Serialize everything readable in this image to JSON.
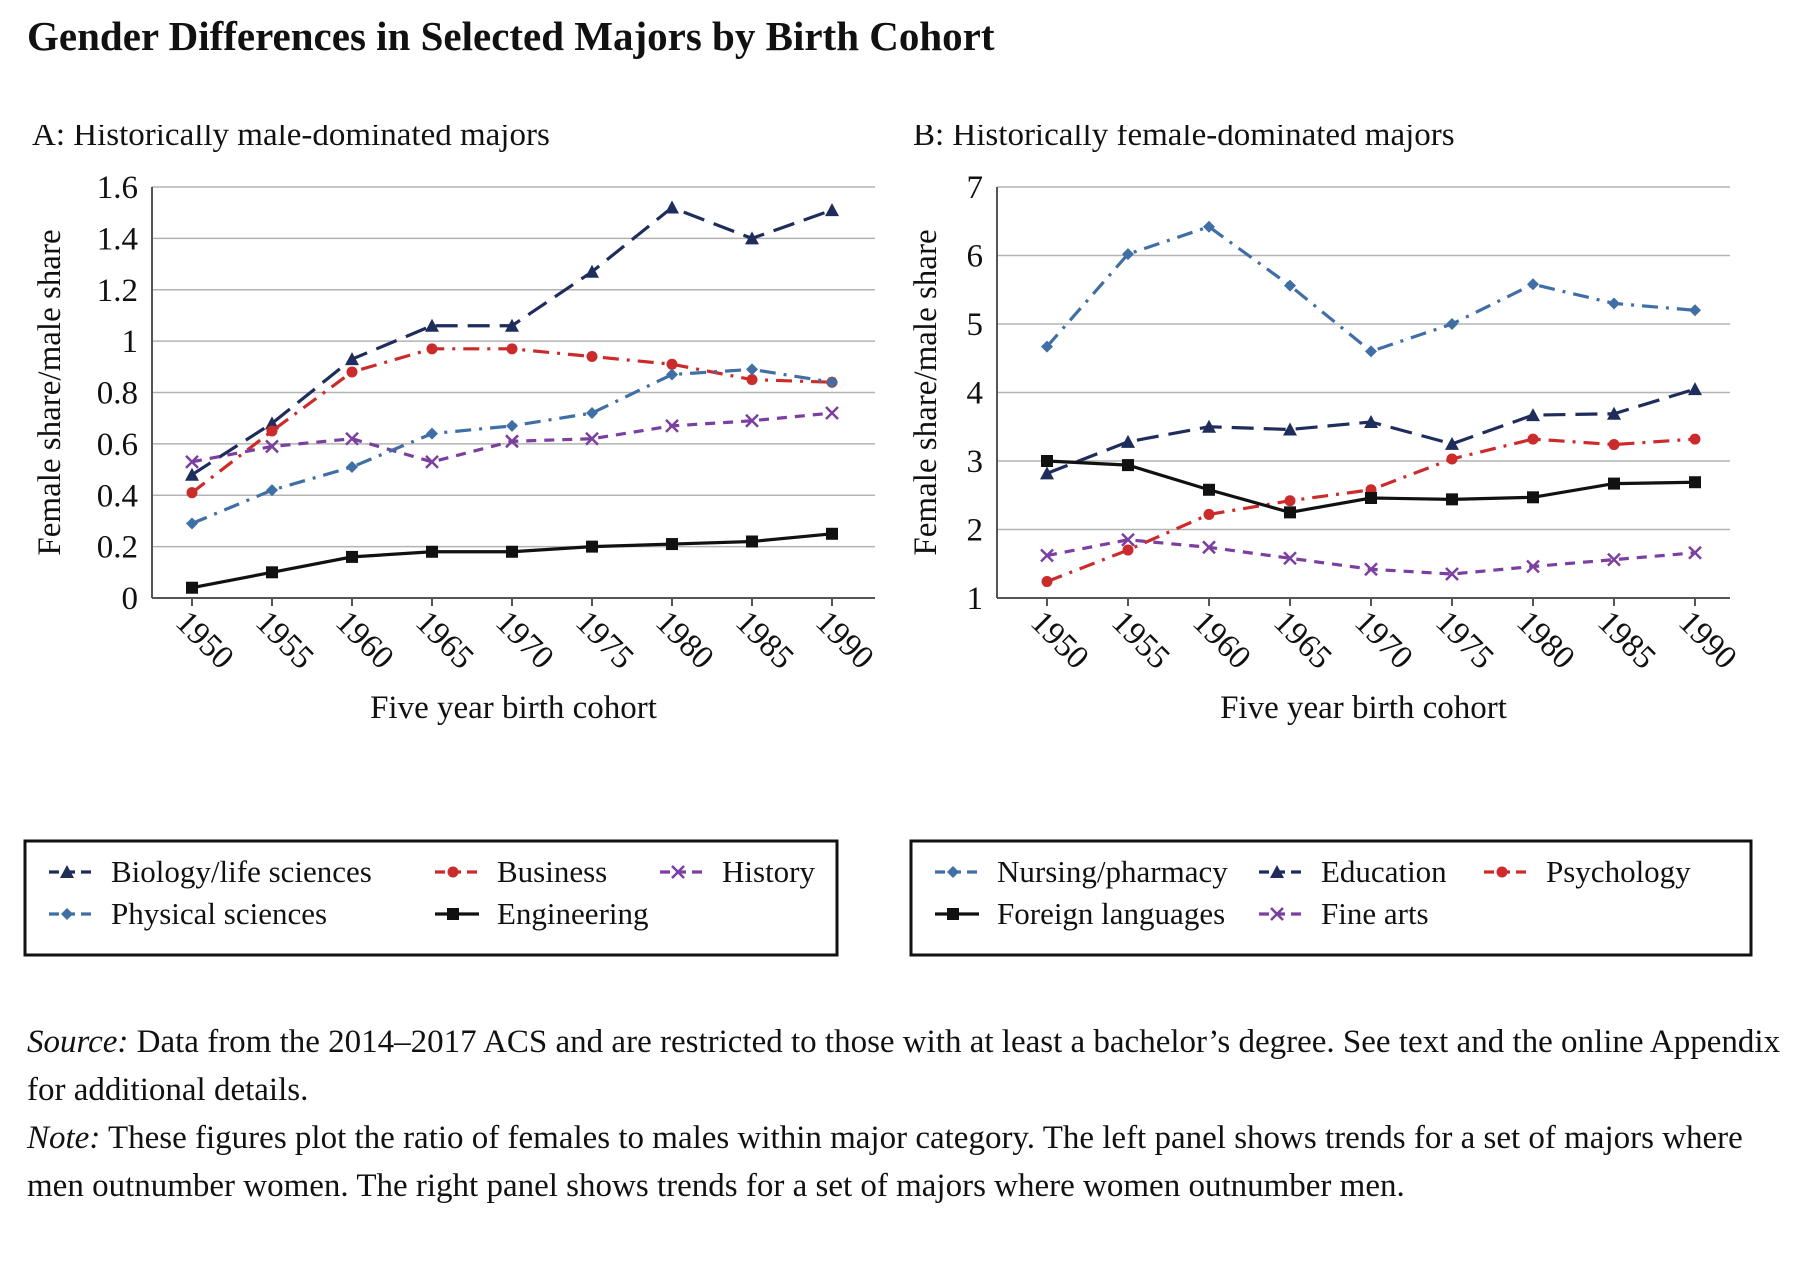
{
  "title": "Gender Differences in Selected Majors by Birth Cohort",
  "notes": {
    "source_label": "Source:",
    "source_text": " Data from the 2014–2017 ACS and are restricted to those with at least a bachelor’s degree. See text and the online Appendix for additional details.",
    "note_label": "Note:",
    "note_text": " These figures plot the ratio of females to males within major category. The left panel shows trends for a set of majors where men outnumber women. The right panel shows trends for a set of majors where women outnumber men."
  },
  "colors": {
    "navy": "#1f2d5c",
    "red": "#cc2b2b",
    "purple": "#7b3fa0",
    "steel_blue": "#3f6fa5",
    "black": "#111111",
    "grid": "#b3b3b3"
  },
  "chart_data": [
    {
      "type": "line",
      "panel_title": "A: Historically male-dominated majors",
      "xlabel": "Five year birth cohort",
      "ylabel": "Female share/male share",
      "x": [
        "1950",
        "1955",
        "1960",
        "1965",
        "1970",
        "1975",
        "1980",
        "1985",
        "1990"
      ],
      "ylim": [
        0,
        1.6
      ],
      "yticks": [
        "0",
        "0.2",
        "0.4",
        "0.6",
        "0.8",
        "1",
        "1.2",
        "1.4",
        "1.6"
      ],
      "grid": true,
      "series": [
        {
          "name": "Biology/life sciences",
          "color": "#1f2d5c",
          "dash": "long",
          "marker": "triangle",
          "values": [
            0.48,
            0.68,
            0.93,
            1.06,
            1.06,
            1.27,
            1.52,
            1.4,
            1.51
          ]
        },
        {
          "name": "Business",
          "color": "#cc2b2b",
          "dash": "dashdot",
          "marker": "circle",
          "values": [
            0.41,
            0.65,
            0.88,
            0.97,
            0.97,
            0.94,
            0.91,
            0.85,
            0.84
          ]
        },
        {
          "name": "History",
          "color": "#7b3fa0",
          "dash": "dash",
          "marker": "x",
          "values": [
            0.53,
            0.59,
            0.62,
            0.53,
            0.61,
            0.62,
            0.67,
            0.69,
            0.72
          ]
        },
        {
          "name": "Physical sciences",
          "color": "#3f6fa5",
          "dash": "dashdot",
          "marker": "diamond",
          "values": [
            0.29,
            0.42,
            0.51,
            0.64,
            0.67,
            0.72,
            0.87,
            0.89,
            0.84
          ]
        },
        {
          "name": "Engineering",
          "color": "#111111",
          "dash": "solid",
          "marker": "square",
          "values": [
            0.04,
            0.1,
            0.16,
            0.18,
            0.18,
            0.2,
            0.21,
            0.22,
            0.25
          ]
        }
      ],
      "legend": {
        "placement": "bottom",
        "columns": 3
      }
    },
    {
      "type": "line",
      "panel_title": "B: Historically female-dominated majors",
      "xlabel": "Five year birth cohort",
      "ylabel": "Female share/male share",
      "x": [
        "1950",
        "1955",
        "1960",
        "1965",
        "1970",
        "1975",
        "1980",
        "1985",
        "1990"
      ],
      "ylim": [
        1,
        7
      ],
      "yticks": [
        "1",
        "2",
        "3",
        "4",
        "5",
        "6",
        "7"
      ],
      "grid": true,
      "series": [
        {
          "name": "Nursing/pharmacy",
          "color": "#3f6fa5",
          "dash": "dashdot",
          "marker": "diamond",
          "values": [
            4.67,
            6.02,
            6.42,
            5.56,
            4.6,
            5.0,
            5.58,
            5.3,
            5.2
          ]
        },
        {
          "name": "Education",
          "color": "#1f2d5c",
          "dash": "long",
          "marker": "triangle",
          "values": [
            2.82,
            3.28,
            3.5,
            3.46,
            3.57,
            3.25,
            3.67,
            3.69,
            4.05
          ]
        },
        {
          "name": "Psychology",
          "color": "#cc2b2b",
          "dash": "dashdot",
          "marker": "circle",
          "values": [
            1.24,
            1.7,
            2.22,
            2.42,
            2.58,
            3.03,
            3.32,
            3.24,
            3.32
          ]
        },
        {
          "name": "Foreign languages",
          "color": "#111111",
          "dash": "solid",
          "marker": "square",
          "values": [
            3.0,
            2.94,
            2.58,
            2.25,
            2.46,
            2.44,
            2.47,
            2.67,
            2.69
          ]
        },
        {
          "name": "Fine arts",
          "color": "#7b3fa0",
          "dash": "dash",
          "marker": "x",
          "values": [
            1.62,
            1.85,
            1.74,
            1.58,
            1.42,
            1.35,
            1.46,
            1.56,
            1.66
          ]
        }
      ],
      "legend": {
        "placement": "bottom",
        "columns": 3
      }
    }
  ]
}
